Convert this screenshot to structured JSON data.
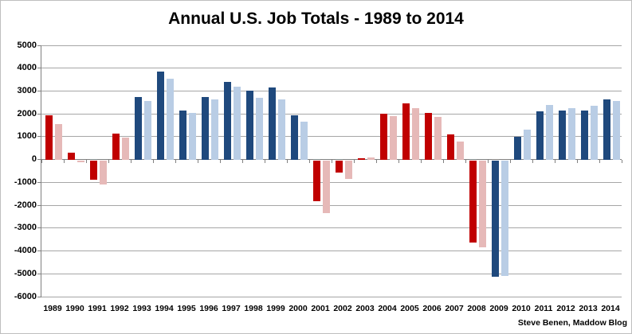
{
  "chart_data": {
    "type": "bar",
    "title": "Annual U.S. Job Totals - 1989 to 2014",
    "attribution": "Steve Benen, Maddow Blog",
    "categories": [
      "1989",
      "1990",
      "1991",
      "1992",
      "1993",
      "1994",
      "1995",
      "1996",
      "1997",
      "1998",
      "1999",
      "2000",
      "2001",
      "2002",
      "2003",
      "2004",
      "2005",
      "2006",
      "2007",
      "2008",
      "2009",
      "2010",
      "2011",
      "2012",
      "2013",
      "2014"
    ],
    "series": [
      {
        "name": "dark-bar",
        "values": [
          1950,
          300,
          -850,
          1150,
          2750,
          3850,
          2150,
          2750,
          3400,
          3000,
          3150,
          1950,
          -1800,
          -550,
          50,
          2000,
          2450,
          2050,
          1100,
          -3600,
          -5100,
          1000,
          2100,
          2150,
          2150,
          2650
        ]
      },
      {
        "name": "light-bar",
        "values": [
          1550,
          -100,
          -1050,
          950,
          2550,
          3550,
          2050,
          2650,
          3200,
          2700,
          2650,
          1650,
          -2300,
          -800,
          100,
          1900,
          2250,
          1850,
          800,
          -3800,
          -5050,
          1300,
          2400,
          2250,
          2350,
          2550
        ]
      }
    ],
    "bar_party": [
      "red",
      "red",
      "red",
      "red",
      "blue",
      "blue",
      "blue",
      "blue",
      "blue",
      "blue",
      "blue",
      "blue",
      "red",
      "red",
      "red",
      "red",
      "red",
      "red",
      "red",
      "red",
      "blue",
      "blue",
      "blue",
      "blue",
      "blue",
      "blue"
    ],
    "ylim": [
      -6000,
      5000
    ],
    "ytick_interval": 1000,
    "grid": true,
    "legend": "none",
    "colors": {
      "red_dark": "#c00000",
      "red_light": "#e6b9b8",
      "blue_dark": "#1f497d",
      "blue_light": "#b9cde5",
      "gridline": "#a6a6a6",
      "axis": "#808080",
      "text": "#000000",
      "border": "#bfbfbf",
      "background": "#ffffff"
    }
  }
}
